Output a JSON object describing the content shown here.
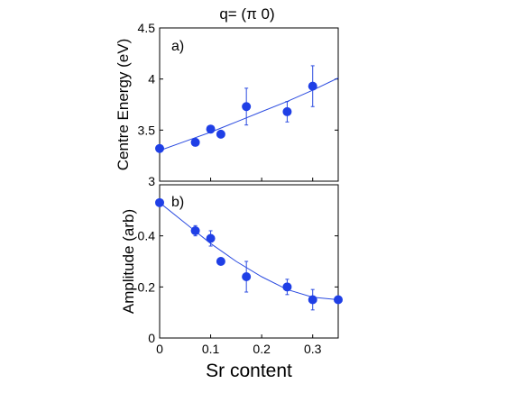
{
  "figure_title": "q= (π 0)",
  "colors": {
    "marker": "#1f3fe6",
    "fit_line": "#2b4be0",
    "axes": "#000000"
  },
  "chart_data": [
    {
      "type": "scatter",
      "panel_label": "a)",
      "xlabel": "",
      "ylabel": "Centre Energy (eV)",
      "xlim": [
        0,
        0.35
      ],
      "ylim": [
        3,
        4.5
      ],
      "yticks": [
        "3",
        "3.5",
        "4",
        "4.5"
      ],
      "xticks": [],
      "x": [
        0,
        0.07,
        0.1,
        0.12,
        0.17,
        0.25,
        0.3
      ],
      "y": [
        3.32,
        3.38,
        3.51,
        3.46,
        3.73,
        3.68,
        3.93
      ],
      "yerr": [
        0,
        0,
        0,
        0,
        0.18,
        0.1,
        0.2
      ],
      "fit": {
        "x": [
          0,
          0.05,
          0.1,
          0.15,
          0.2,
          0.25,
          0.3,
          0.35
        ],
        "y": [
          3.3,
          3.39,
          3.48,
          3.58,
          3.68,
          3.78,
          3.89,
          4.01
        ]
      },
      "grid": false
    },
    {
      "type": "scatter",
      "panel_label": "b)",
      "xlabel": "Sr content",
      "ylabel": "Amplitude (arb)",
      "xlim": [
        0,
        0.35
      ],
      "ylim": [
        0,
        0.6
      ],
      "yticks": [
        "0",
        "0.2",
        "0.4"
      ],
      "xticks": [
        "0",
        "0.1",
        "0.2",
        "0.3"
      ],
      "x": [
        0,
        0.07,
        0.1,
        0.12,
        0.17,
        0.25,
        0.3,
        0.35
      ],
      "y": [
        0.53,
        0.42,
        0.39,
        0.3,
        0.24,
        0.2,
        0.15,
        0.15
      ],
      "yerr": [
        0,
        0.02,
        0.03,
        0,
        0.06,
        0.03,
        0.04,
        0
      ],
      "fit": {
        "x": [
          0,
          0.05,
          0.1,
          0.15,
          0.2,
          0.25,
          0.3,
          0.35
        ],
        "y": [
          0.53,
          0.45,
          0.37,
          0.3,
          0.24,
          0.19,
          0.16,
          0.15
        ]
      },
      "grid": false
    }
  ]
}
